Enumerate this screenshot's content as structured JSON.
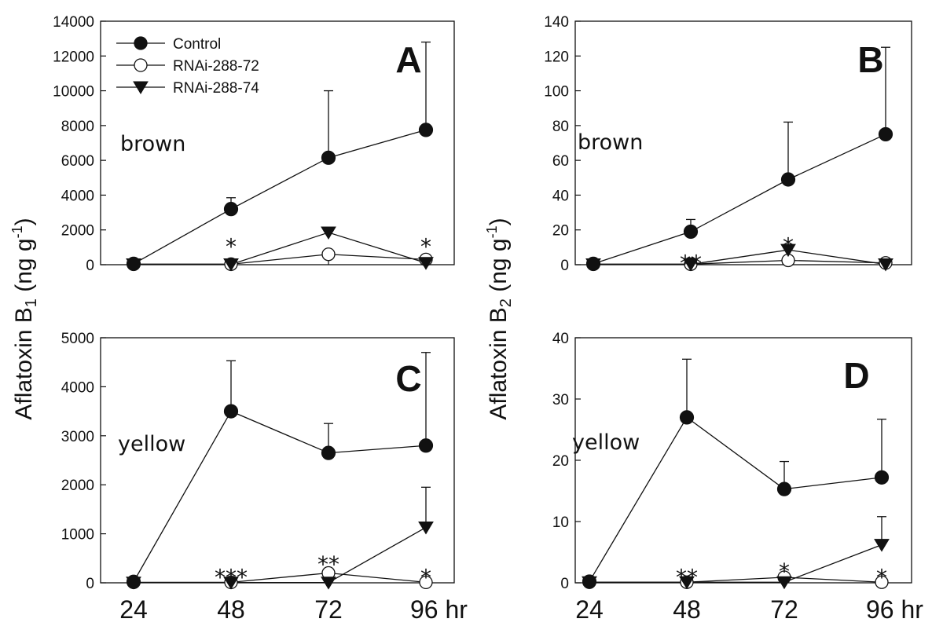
{
  "figure": {
    "ylabel_left": "Aflatoxin B",
    "ylabel_left_sub": "1",
    "ylabel_right": "Aflatoxin B",
    "ylabel_right_sub": "2",
    "ylabel_unit_open": " (ng g",
    "ylabel_unit_exp": "-1",
    "ylabel_unit_close": ")"
  },
  "legend": {
    "entries": [
      "Control",
      "RNAi-288-72",
      "RNAi-288-74"
    ]
  },
  "colors": {
    "line": "#111111",
    "fill_open": "#ffffff"
  },
  "chart_data": [
    {
      "type": "line",
      "panel": "A",
      "note": "brown",
      "ylim": [
        0,
        14000
      ],
      "yticks": [
        0,
        2000,
        4000,
        6000,
        8000,
        10000,
        12000,
        14000
      ],
      "x": [
        24,
        48,
        72,
        96
      ],
      "xtick_labels": [
        "24",
        "48",
        "72",
        "96 hr"
      ],
      "series": [
        {
          "name": "Control",
          "marker": "circle-filled",
          "values": [
            50,
            3200,
            6150,
            7750
          ],
          "error_upper": [
            null,
            3850,
            10000,
            12800
          ]
        },
        {
          "name": "RNAi-288-72",
          "marker": "circle-open",
          "values": [
            30,
            30,
            600,
            300
          ],
          "error_upper": [
            null,
            null,
            null,
            null
          ]
        },
        {
          "name": "RNAi-288-74",
          "marker": "triangle-down",
          "values": [
            20,
            20,
            1850,
            100
          ],
          "error_upper": [
            null,
            null,
            null,
            null
          ]
        }
      ],
      "annotations": [
        {
          "x": 48,
          "y": 1150,
          "text": "*"
        },
        {
          "x": 96,
          "y": 1150,
          "text": "*"
        }
      ]
    },
    {
      "type": "line",
      "panel": "B",
      "note": "brown",
      "ylim": [
        0,
        140
      ],
      "yticks": [
        0,
        20,
        40,
        60,
        80,
        100,
        120,
        140
      ],
      "x": [
        24,
        48,
        72,
        96
      ],
      "xtick_labels": [
        "24",
        "48",
        "72",
        "96 hr"
      ],
      "series": [
        {
          "name": "Control",
          "marker": "circle-filled",
          "values": [
            0.5,
            19,
            49,
            75
          ],
          "error_upper": [
            null,
            26,
            82,
            125
          ]
        },
        {
          "name": "RNAi-288-72",
          "marker": "circle-open",
          "values": [
            0.3,
            0.3,
            2.5,
            1
          ],
          "error_upper": [
            null,
            null,
            null,
            null
          ]
        },
        {
          "name": "RNAi-288-74",
          "marker": "triangle-down",
          "values": [
            0.2,
            0.2,
            8.5,
            0.2
          ],
          "error_upper": [
            null,
            null,
            null,
            null
          ]
        }
      ],
      "annotations": [
        {
          "x": 48,
          "y": 2,
          "text": "**"
        },
        {
          "x": 72,
          "y": 12,
          "text": "*"
        }
      ]
    },
    {
      "type": "line",
      "panel": "C",
      "note": "yellow",
      "ylim": [
        0,
        5000
      ],
      "yticks": [
        0,
        1000,
        2000,
        3000,
        4000,
        5000
      ],
      "x": [
        24,
        48,
        72,
        96
      ],
      "xtick_labels": [
        "24",
        "48",
        "72",
        "96 hr"
      ],
      "series": [
        {
          "name": "Control",
          "marker": "circle-filled",
          "values": [
            20,
            3500,
            2650,
            2800
          ],
          "error_upper": [
            null,
            4530,
            3250,
            4700
          ]
        },
        {
          "name": "RNAi-288-72",
          "marker": "circle-open",
          "values": [
            10,
            10,
            200,
            10
          ],
          "error_upper": [
            null,
            null,
            null,
            null
          ]
        },
        {
          "name": "RNAi-288-74",
          "marker": "triangle-down",
          "values": [
            5,
            5,
            5,
            1130
          ],
          "error_upper": [
            null,
            null,
            null,
            1950
          ]
        }
      ],
      "annotations": [
        {
          "x": 48,
          "y": 150,
          "text": "***"
        },
        {
          "x": 72,
          "y": 420,
          "text": "**"
        },
        {
          "x": 96,
          "y": 150,
          "text": "*"
        }
      ]
    },
    {
      "type": "line",
      "panel": "D",
      "note": "yellow",
      "ylim": [
        0,
        40
      ],
      "yticks": [
        0,
        10,
        20,
        30,
        40
      ],
      "x": [
        24,
        48,
        72,
        96
      ],
      "xtick_labels": [
        "24",
        "48",
        "72",
        "96 hr"
      ],
      "series": [
        {
          "name": "Control",
          "marker": "circle-filled",
          "values": [
            0.2,
            27,
            15.3,
            17.2
          ],
          "error_upper": [
            null,
            36.5,
            19.8,
            26.7
          ]
        },
        {
          "name": "RNAi-288-72",
          "marker": "circle-open",
          "values": [
            0.1,
            0.1,
            0.9,
            0.1
          ],
          "error_upper": [
            null,
            null,
            null,
            null
          ]
        },
        {
          "name": "RNAi-288-74",
          "marker": "triangle-down",
          "values": [
            0.1,
            0.1,
            0.1,
            6.2
          ],
          "error_upper": [
            null,
            null,
            null,
            10.8
          ]
        }
      ],
      "annotations": [
        {
          "x": 48,
          "y": 1.2,
          "text": "**"
        },
        {
          "x": 72,
          "y": 2.2,
          "text": "*"
        },
        {
          "x": 96,
          "y": 1.2,
          "text": "*"
        }
      ]
    }
  ]
}
